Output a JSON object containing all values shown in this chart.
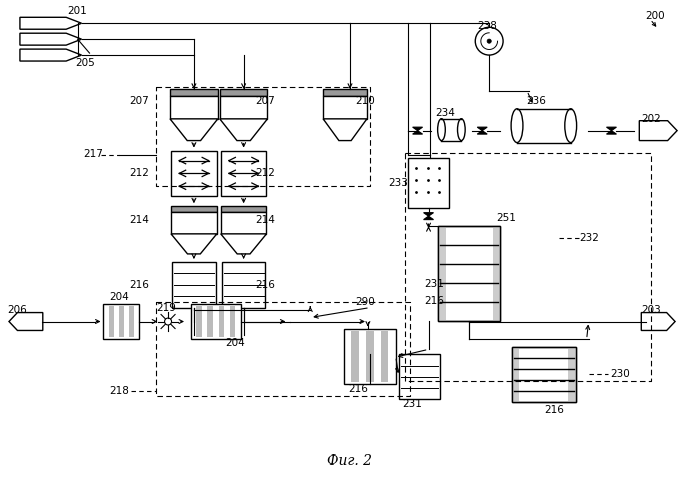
{
  "title": "Фиг. 2",
  "bg_color": "#ffffff"
}
